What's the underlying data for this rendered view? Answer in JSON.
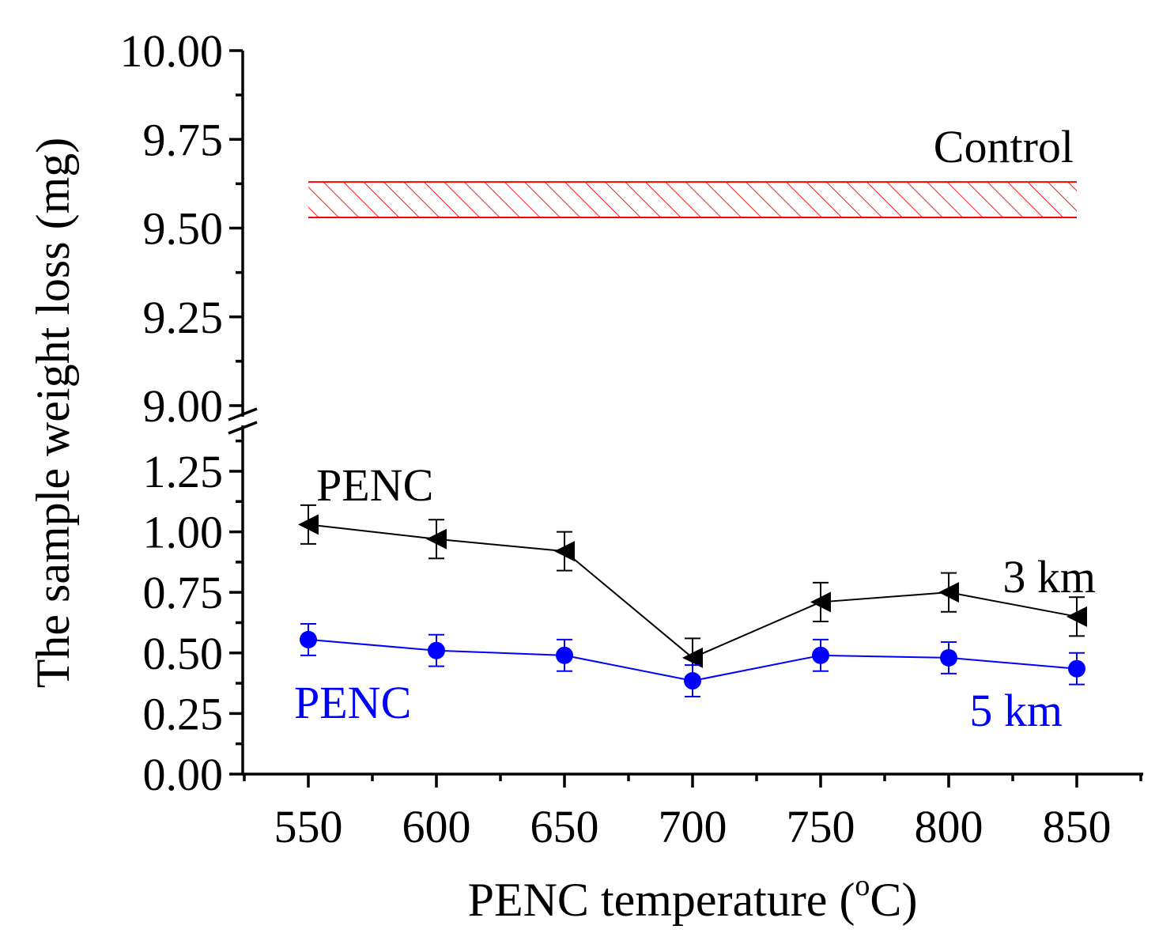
{
  "chart_data": {
    "type": "line",
    "title": "",
    "xlabel": "PENC temperature (",
    "xlabel_sup": "o",
    "xlabel_unit": "C)",
    "ylabel": "The sample weight loss (mg)",
    "x": [
      550,
      600,
      650,
      700,
      750,
      800,
      850
    ],
    "x_tick_labels": [
      "550",
      "600",
      "650",
      "700",
      "750",
      "800",
      "850"
    ],
    "xlim": [
      525,
      875
    ],
    "y_axis_break": true,
    "y_lower_range": [
      0,
      1.4
    ],
    "y_upper_range": [
      9.0,
      10.0
    ],
    "y_tick_labels_lower": [
      "0.00",
      "0.25",
      "0.50",
      "0.75",
      "1.00",
      "1.25"
    ],
    "y_tick_values_lower": [
      0,
      0.25,
      0.5,
      0.75,
      1.0,
      1.25
    ],
    "y_tick_labels_upper": [
      "9.00",
      "9.25",
      "9.50",
      "9.75",
      "10.00"
    ],
    "y_tick_values_upper": [
      9.0,
      9.25,
      9.5,
      9.75,
      10.0
    ],
    "series": [
      {
        "name": "PENC 3 km",
        "label_line1": "PENC",
        "label_line2": "3 km",
        "color": "#000000",
        "marker": "left-triangle",
        "values": [
          1.03,
          0.97,
          0.92,
          0.48,
          0.71,
          0.75,
          0.65
        ],
        "errors": [
          0.08,
          0.08,
          0.08,
          0.08,
          0.08,
          0.08,
          0.08
        ]
      },
      {
        "name": "PENC 5 km",
        "label_line1": "PENC",
        "label_line2": "5 km",
        "color": "#0000ff",
        "marker": "circle",
        "values": [
          0.555,
          0.51,
          0.49,
          0.385,
          0.49,
          0.48,
          0.435
        ],
        "errors": [
          0.065,
          0.065,
          0.065,
          0.065,
          0.065,
          0.065,
          0.065
        ]
      }
    ],
    "control_band": {
      "label": "Control",
      "y_low": 9.53,
      "y_high": 9.63,
      "x_start": 550,
      "x_end": 850,
      "color": "#ff0000",
      "pattern": "diagonal hatch"
    }
  }
}
